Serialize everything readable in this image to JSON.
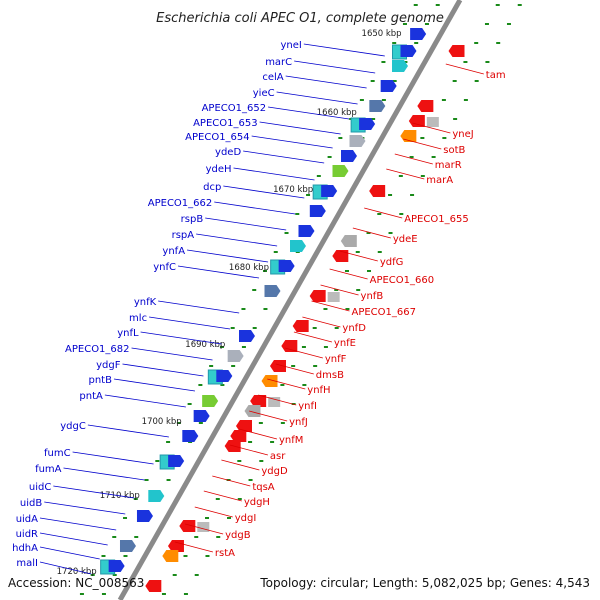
{
  "title": "Escherichia coli APEC O1, complete genome",
  "footer": {
    "accession": "Accession: NC_008563",
    "summary": "Topology: circular; Length: 5,082,025 bp; Genes: 4,543"
  },
  "colors": {
    "left_label": "#0000cc",
    "right_label": "#dd0000",
    "backbone": "#8a8a8a",
    "tick": "#1a8a1a"
  },
  "kbp_marks": [
    "1650 kbp",
    "1660 kbp",
    "1670 kbp",
    "1680 kbp",
    "1690 kbp",
    "1700 kbp",
    "1710 kbp",
    "1720 kbp"
  ],
  "left_genes": [
    "yneI",
    "marC",
    "celA",
    "yieC",
    "APECO1_652",
    "APECO1_653",
    "APECO1_654",
    "ydeD",
    "ydeH",
    "dcp",
    "APECO1_662",
    "rspB",
    "rspA",
    "ynfA",
    "ynfC",
    "ynfK",
    "mlc",
    "ynfL",
    "APECO1_682",
    "ydgF",
    "pntB",
    "pntA",
    "ydgC",
    "fumC",
    "fumA",
    "uidC",
    "uidB",
    "uidA",
    "uidR",
    "hdhA",
    "malI"
  ],
  "right_genes": [
    "tam",
    "yneJ",
    "sotB",
    "marR",
    "marA",
    "APECO1_655",
    "ydeE",
    "ydfG",
    "APECO1_660",
    "ynfB",
    "APECO1_667",
    "ynfD",
    "ynfE",
    "ynfF",
    "dmsB",
    "ynfH",
    "ynfI",
    "ynfJ",
    "ynfM",
    "asr",
    "ydgD",
    "tqsA",
    "ydgH",
    "ydgI",
    "ydgB",
    "rstA"
  ]
}
